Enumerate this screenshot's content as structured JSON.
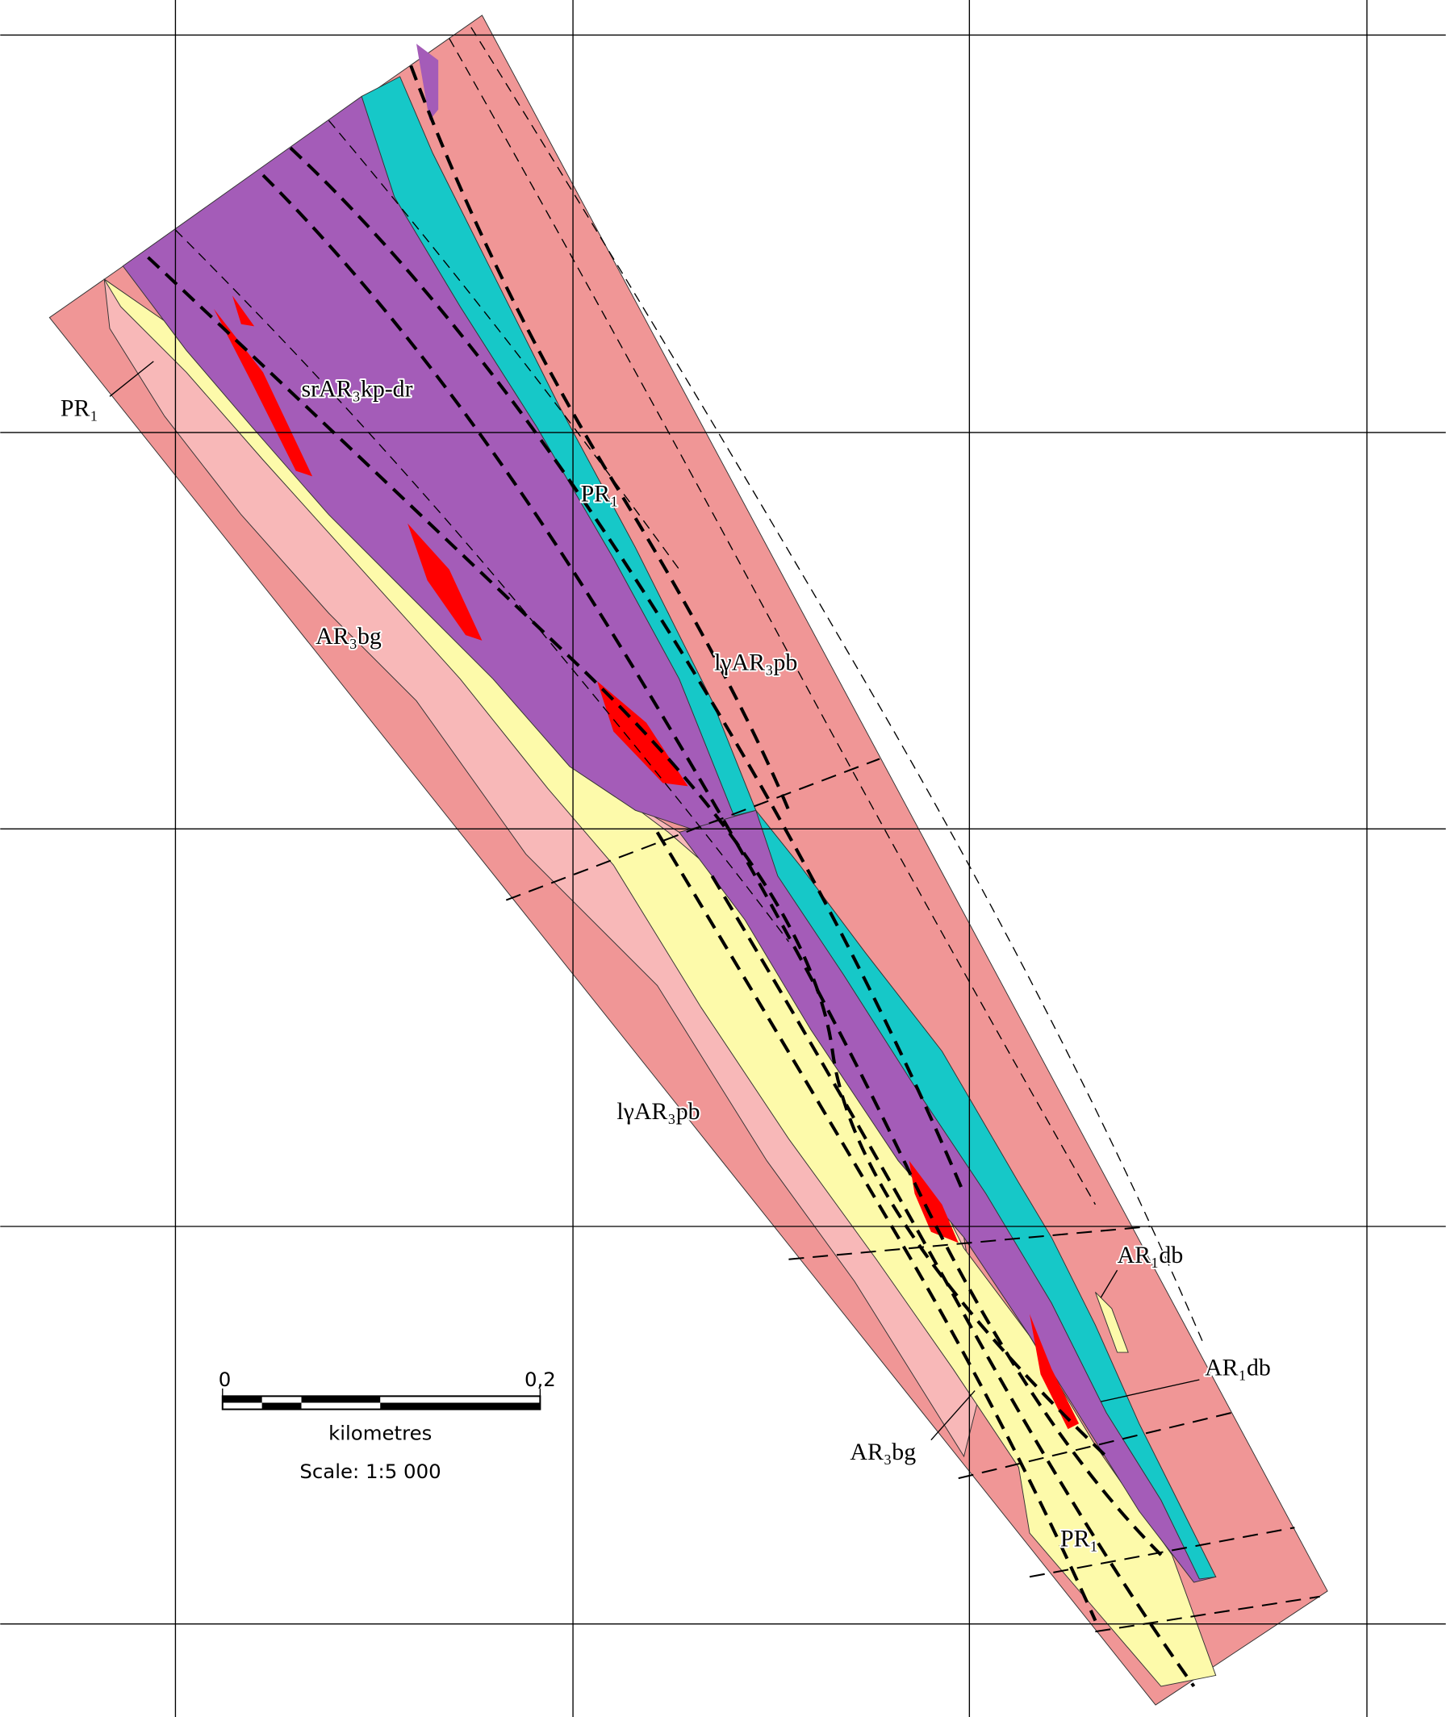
{
  "map": {
    "labels": [
      "PR₁",
      "srAR₃kp-dr",
      "PR₁",
      "lγAR₃pb",
      "AR₃bg",
      "lγAR₃pb",
      "AR₁db",
      "AR₁db",
      "AR₃bg",
      "PR₁"
    ],
    "scale_bar": {
      "start": "0",
      "end": "0,2",
      "unit": "kilometres",
      "scale": "Scale: 1:5 000"
    }
  }
}
